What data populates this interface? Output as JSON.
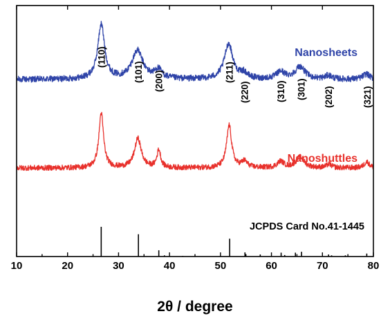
{
  "chart_data": {
    "type": "line",
    "title": "",
    "xlabel": "2θ / degree",
    "ylabel": "",
    "xlim": [
      10,
      80
    ],
    "x_ticks": [
      10,
      20,
      30,
      40,
      50,
      60,
      70,
      80
    ],
    "y_ticks_shown": false,
    "grid": false,
    "series": [
      {
        "name": "Nanosheets",
        "color": "#2f44a8",
        "baseline_offset": 2.0,
        "noise": 0.035,
        "peaks": [
          {
            "center": 26.6,
            "height": 0.62,
            "width": 1.6
          },
          {
            "center": 33.7,
            "height": 0.32,
            "width": 2.6
          },
          {
            "center": 37.8,
            "height": 0.1,
            "width": 1.8
          },
          {
            "center": 51.6,
            "height": 0.4,
            "width": 2.0
          },
          {
            "center": 54.6,
            "height": 0.06,
            "width": 1.6
          },
          {
            "center": 61.8,
            "height": 0.08,
            "width": 2.0
          },
          {
            "center": 65.6,
            "height": 0.14,
            "width": 2.4
          },
          {
            "center": 71.2,
            "height": 0.04,
            "width": 1.6
          },
          {
            "center": 78.6,
            "height": 0.06,
            "width": 1.6
          }
        ]
      },
      {
        "name": "Nanoshuttles",
        "color": "#e8302b",
        "baseline_offset": 1.0,
        "noise": 0.03,
        "peaks": [
          {
            "center": 26.6,
            "height": 0.62,
            "width": 1.1
          },
          {
            "center": 33.8,
            "height": 0.33,
            "width": 1.6
          },
          {
            "center": 37.9,
            "height": 0.2,
            "width": 0.9
          },
          {
            "center": 51.7,
            "height": 0.48,
            "width": 1.2
          },
          {
            "center": 54.7,
            "height": 0.07,
            "width": 1.4
          },
          {
            "center": 61.8,
            "height": 0.07,
            "width": 1.6
          },
          {
            "center": 65.6,
            "height": 0.12,
            "width": 2.0
          },
          {
            "center": 71.3,
            "height": 0.04,
            "width": 1.2
          },
          {
            "center": 78.7,
            "height": 0.07,
            "width": 1.2
          }
        ]
      }
    ],
    "peak_labels": [
      {
        "hkl": "(110)",
        "x": 26.6
      },
      {
        "hkl": "(101)",
        "x": 33.9
      },
      {
        "hkl": "(200)",
        "x": 37.9
      },
      {
        "hkl": "(211)",
        "x": 51.7
      },
      {
        "hkl": "(220)",
        "x": 54.7
      },
      {
        "hkl": "(310)",
        "x": 61.8
      },
      {
        "hkl": "(301)",
        "x": 65.8
      },
      {
        "hkl": "(202)",
        "x": 71.2
      },
      {
        "hkl": "(321)",
        "x": 78.8
      }
    ],
    "reference": {
      "label": "JCPDS Card No.41-1445",
      "lines": [
        {
          "x": 26.6,
          "intensity": 100
        },
        {
          "x": 33.9,
          "intensity": 75
        },
        {
          "x": 37.9,
          "intensity": 21
        },
        {
          "x": 39.0,
          "intensity": 4
        },
        {
          "x": 42.6,
          "intensity": 2
        },
        {
          "x": 51.8,
          "intensity": 60
        },
        {
          "x": 54.8,
          "intensity": 14
        },
        {
          "x": 57.8,
          "intensity": 7
        },
        {
          "x": 61.9,
          "intensity": 13
        },
        {
          "x": 62.6,
          "intensity": 5
        },
        {
          "x": 64.7,
          "intensity": 13
        },
        {
          "x": 65.9,
          "intensity": 16
        },
        {
          "x": 71.2,
          "intensity": 7
        },
        {
          "x": 71.8,
          "intensity": 4
        },
        {
          "x": 74.5,
          "intensity": 4
        },
        {
          "x": 78.7,
          "intensity": 10
        }
      ]
    }
  }
}
